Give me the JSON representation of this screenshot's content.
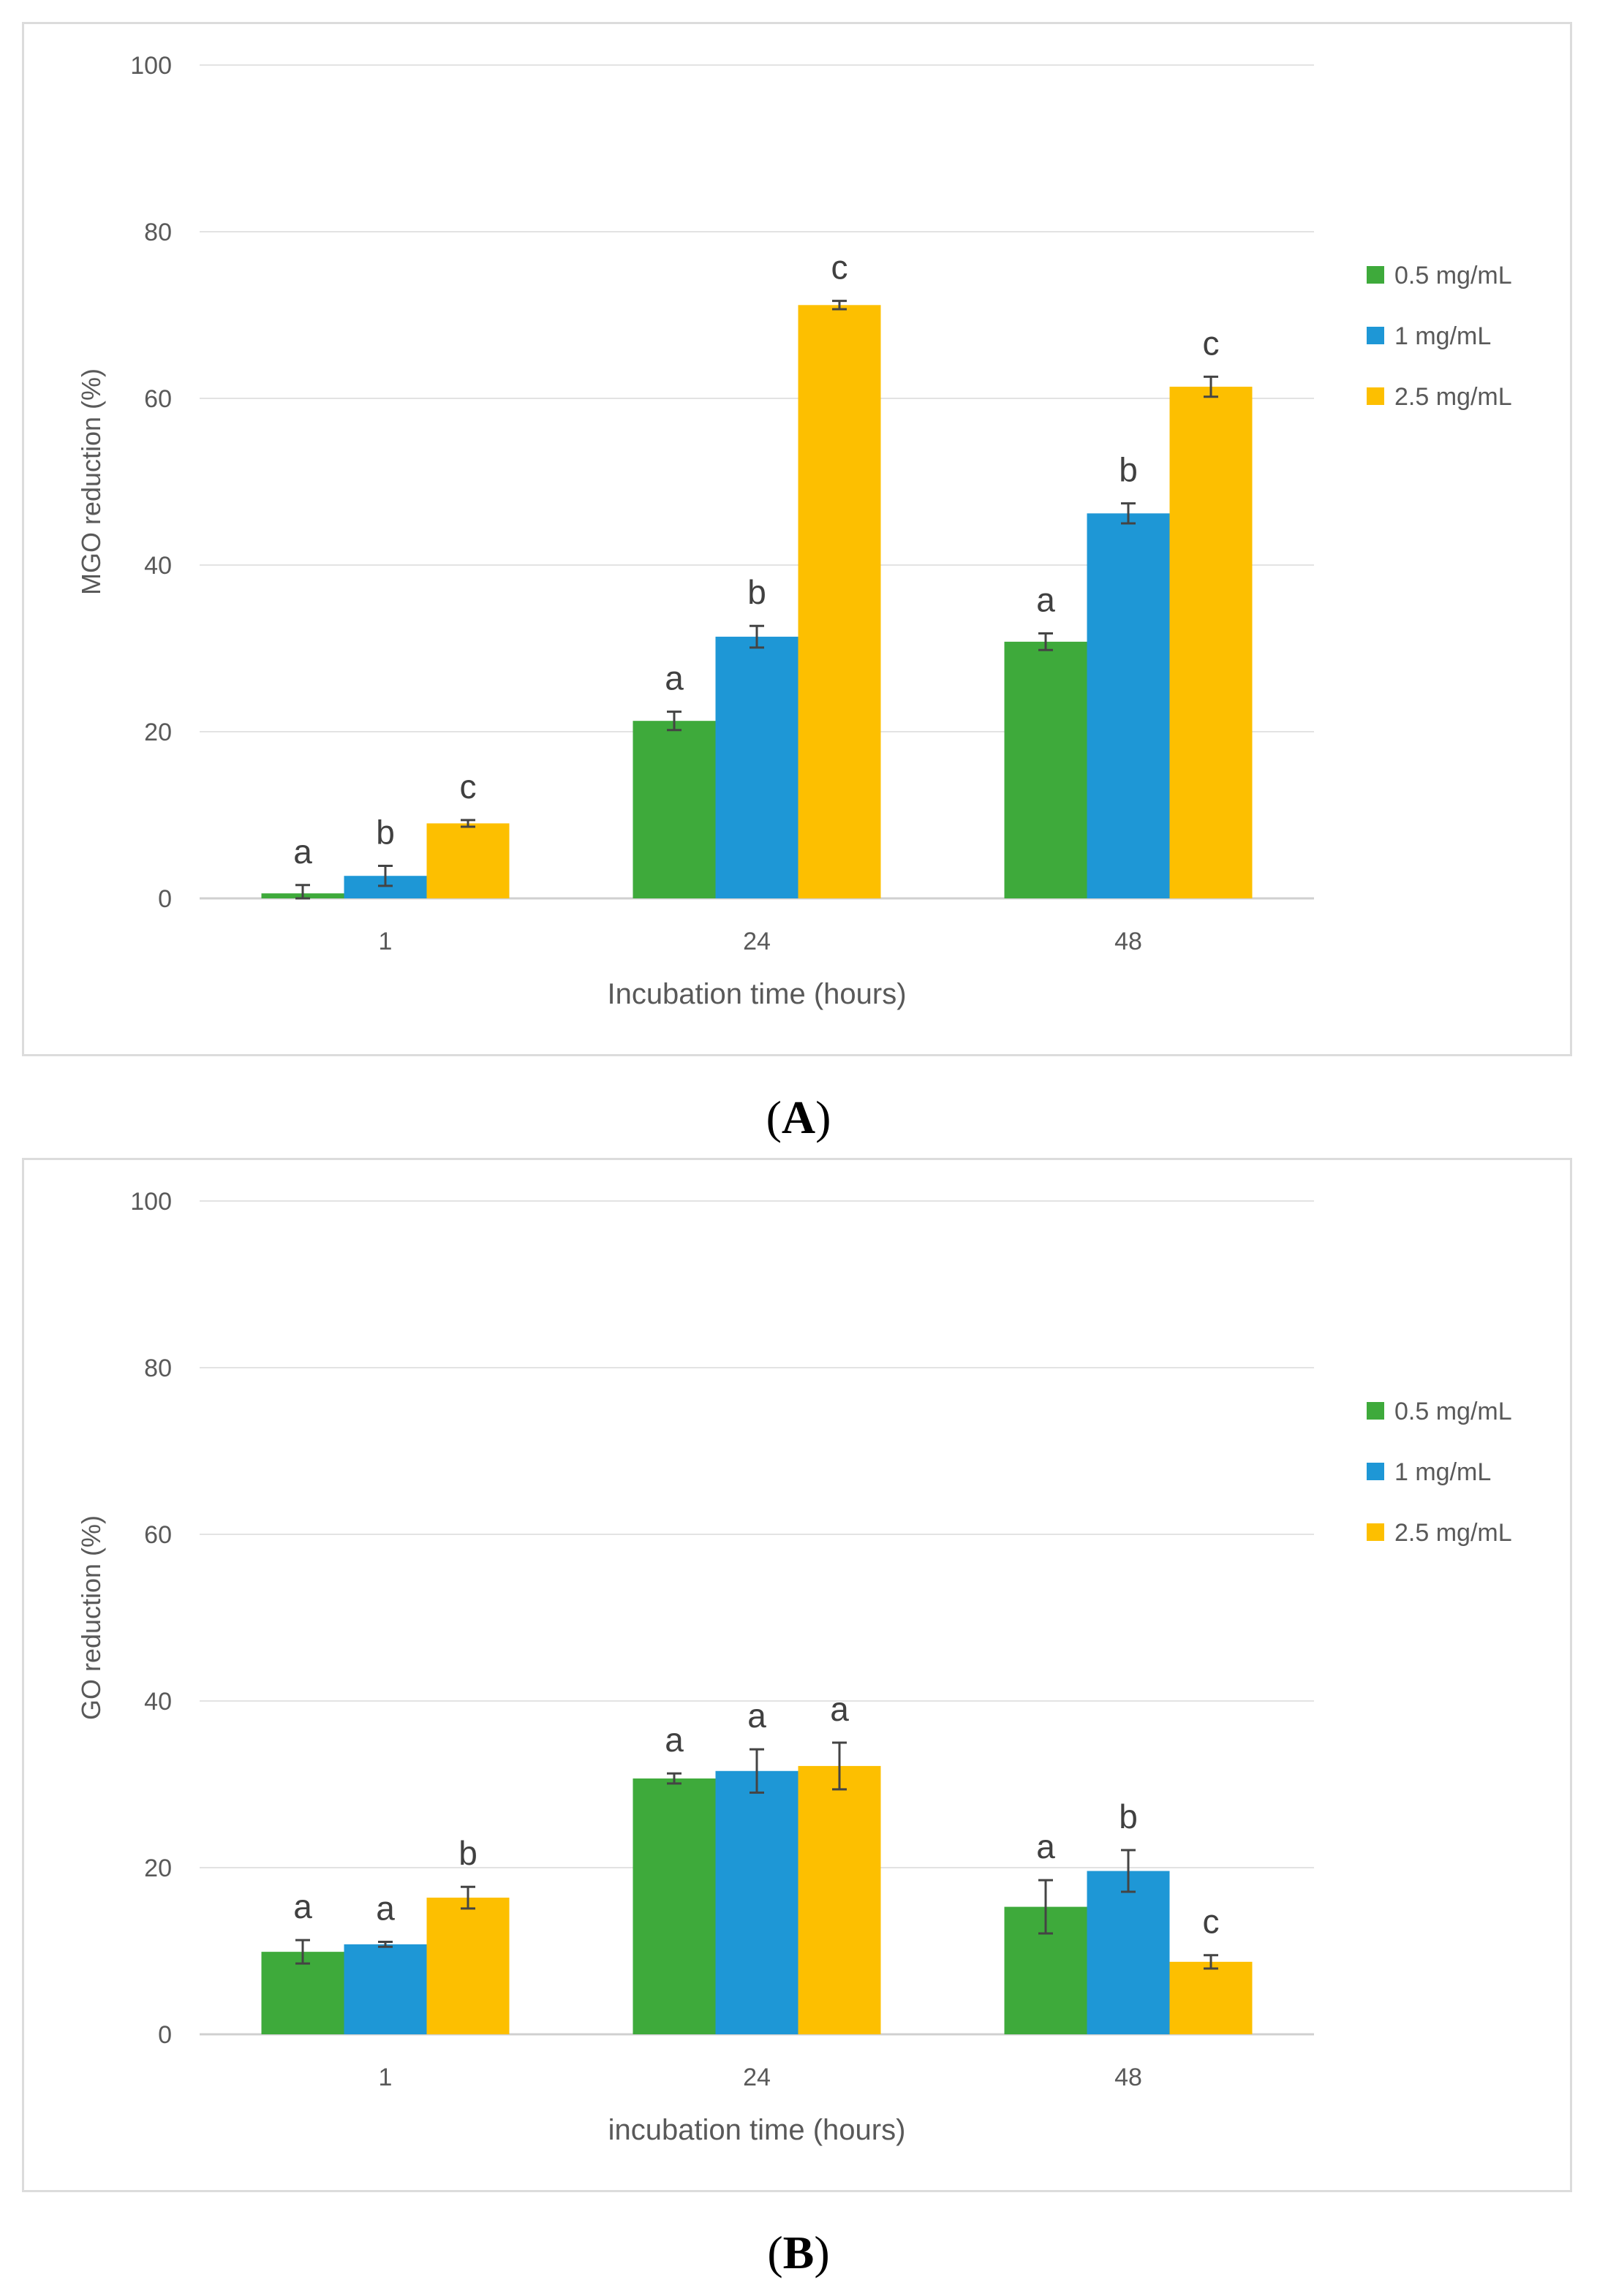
{
  "colors": {
    "0.5 mg/mL": "#3eaa3b",
    "1 mg/mL": "#1e97d6",
    "2.5 mg/mL": "#fdbf00"
  },
  "chart_data": [
    {
      "type": "bar",
      "panel_label": "A",
      "title": "",
      "xlabel": "Incubation time (hours)",
      "ylabel": "MGO reduction (%)",
      "ylim": [
        0,
        100
      ],
      "yticks": [
        "0",
        "20",
        "40",
        "60",
        "80",
        "100"
      ],
      "categories": [
        "1",
        "24",
        "48"
      ],
      "legend": [
        "0.5 mg/mL",
        "1 mg/mL",
        "2.5 mg/mL"
      ],
      "series": [
        {
          "name": "0.5 mg/mL",
          "values": [
            0.6,
            21.3,
            30.8
          ],
          "errors": [
            1.0,
            1.1,
            1.0
          ],
          "letters": [
            "a",
            "a",
            "a"
          ]
        },
        {
          "name": "1 mg/mL",
          "values": [
            2.7,
            31.4,
            46.2
          ],
          "errors": [
            1.2,
            1.3,
            1.2
          ],
          "letters": [
            "b",
            "b",
            "b"
          ]
        },
        {
          "name": "2.5 mg/mL",
          "values": [
            9.0,
            71.2,
            61.4
          ],
          "errors": [
            0.4,
            0.5,
            1.2
          ],
          "letters": [
            "c",
            "c",
            "c"
          ]
        }
      ]
    },
    {
      "type": "bar",
      "panel_label": "B",
      "title": "",
      "xlabel": "incubation time (hours)",
      "ylabel": "GO reduction (%)",
      "ylim": [
        0,
        100
      ],
      "yticks": [
        "0",
        "20",
        "40",
        "60",
        "80",
        "100"
      ],
      "categories": [
        "1",
        "24",
        "48"
      ],
      "legend": [
        "0.5 mg/mL",
        "1 mg/mL",
        "2.5 mg/mL"
      ],
      "series": [
        {
          "name": "0.5 mg/mL",
          "values": [
            9.9,
            30.7,
            15.3
          ],
          "errors": [
            1.4,
            0.6,
            3.2
          ],
          "letters": [
            "a",
            "a",
            "a"
          ]
        },
        {
          "name": "1 mg/mL",
          "values": [
            10.8,
            31.6,
            19.6
          ],
          "errors": [
            0.3,
            2.6,
            2.5
          ],
          "letters": [
            "a",
            "a",
            "b"
          ]
        },
        {
          "name": "2.5 mg/mL",
          "values": [
            16.4,
            32.2,
            8.7
          ],
          "errors": [
            1.3,
            2.8,
            0.8
          ],
          "letters": [
            "b",
            "a",
            "c"
          ]
        }
      ]
    }
  ]
}
